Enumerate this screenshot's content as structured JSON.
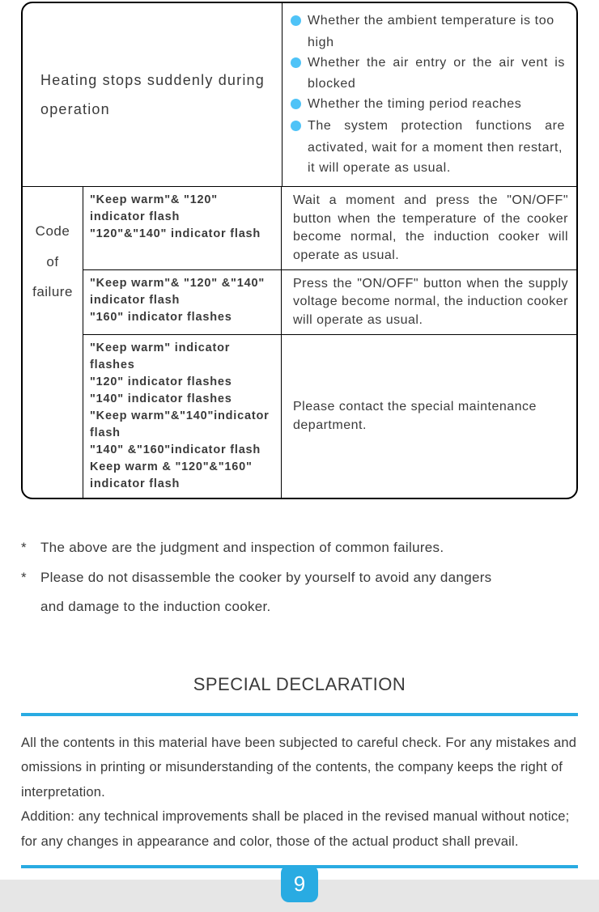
{
  "colors": {
    "accent": "#29abe2",
    "bullet": "#4fc3f7",
    "footer_bar": "#e6e6e6",
    "text": "#3a3a3a",
    "border": "#000000"
  },
  "table": {
    "row1": {
      "left": "Heating stops suddenly during operation",
      "bullets": [
        {
          "t1": "Whether the ambient temperature is too",
          "t2": "high"
        },
        {
          "t1": "Whether the air entry or the air vent is",
          "t2": "blocked"
        },
        {
          "t1": "Whether the timing period reaches"
        },
        {
          "t1": "The system protection functions are",
          "t2": "activated, wait for a moment then restart,",
          "t3": "it will operate as usual."
        }
      ]
    },
    "row2": {
      "label1": "Code",
      "label2": "of",
      "label3": "failure",
      "subs": [
        {
          "left": "\"Keep warm\"& \"120\" indicator  flash\n \"120\"&\"140\" indicator flash",
          "right": "Wait a moment and press the \"ON/OFF\" button when the temperature of the cooker become normal, the induction cooker will operate as usual."
        },
        {
          "left": "\"Keep warm\"& \"120\" &\"140\" indicator flash\n \"160\" indicator flashes",
          "right": "Press the \"ON/OFF\" button when the supply voltage become normal, the induction cooker will operate as usual."
        },
        {
          "left": "\"Keep warm\" indicator flashes\n\"120\" indicator flashes\n\"140\" indicator flashes\n\"Keep warm\"&\"140\"indicator flash\n\"140\" &\"160\"indicator flash\nKeep warm & \"120\"&\"160\" indicator  flash",
          "right": "Please contact the special maintenance department."
        }
      ]
    }
  },
  "notes": {
    "n1": "The above are the judgment and inspection of common failures.",
    "n2": "Please do not disassemble the cooker by yourself to avoid any dangers",
    "n2b": "and damage to the induction cooker."
  },
  "declaration": {
    "title": "SPECIAL DECLARATION",
    "body1": "All the contents in this material have been subjected to careful check. For any mistakes and omissions in printing or misunderstanding of the contents, the company keeps the right of interpretation.",
    "body2": "Addition: any technical improvements shall be placed in the revised manual without notice; for any changes in appearance and color, those of the actual product shall prevail."
  },
  "page_number": "9"
}
